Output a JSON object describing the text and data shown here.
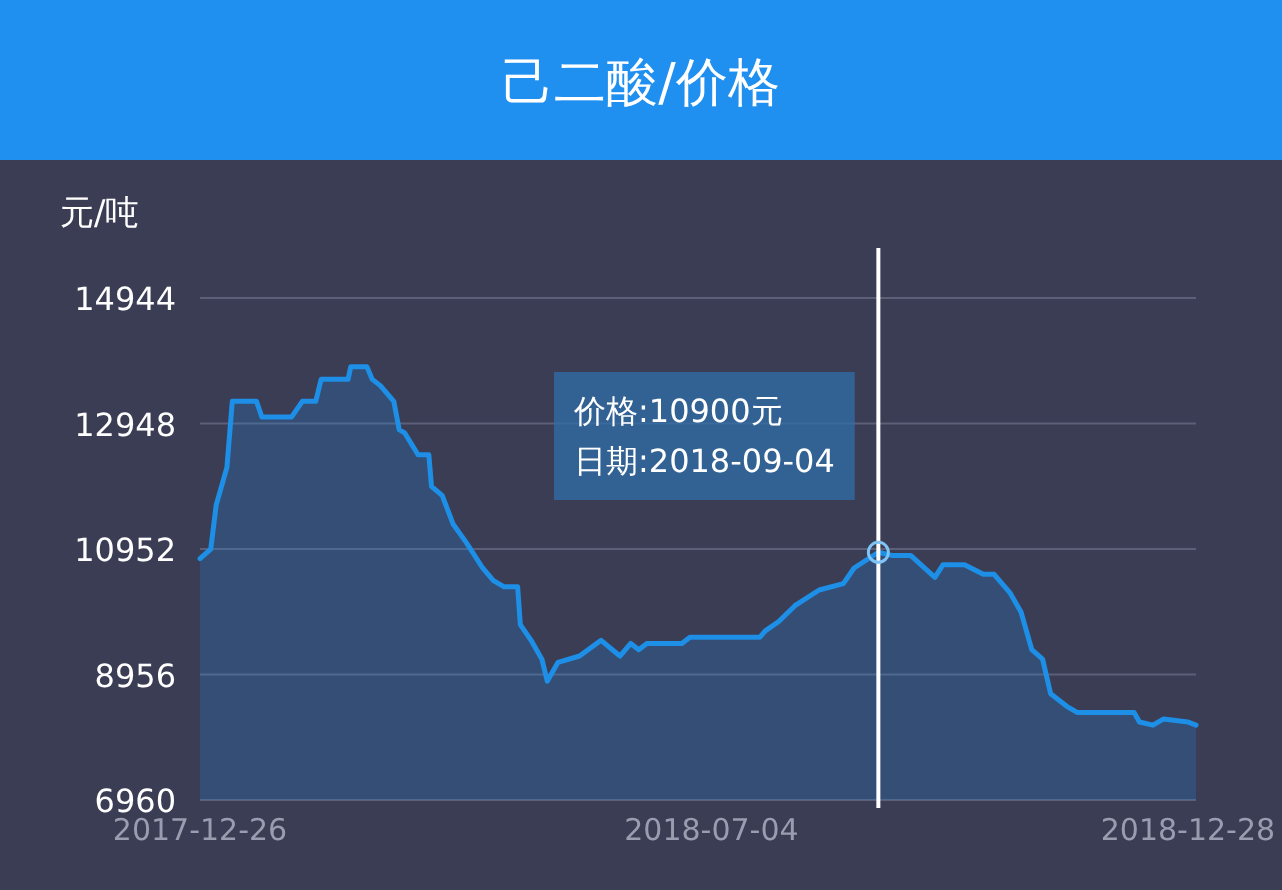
{
  "chart_data": {
    "type": "area",
    "title": "己二酸/价格",
    "ylabel": "元/吨",
    "x": [
      "2017-12-26",
      "2017-12-30",
      "2018-01-01",
      "2018-01-05",
      "2018-01-07",
      "2018-01-16",
      "2018-01-18",
      "2018-01-29",
      "2018-02-02",
      "2018-02-07",
      "2018-02-09",
      "2018-02-19",
      "2018-02-20",
      "2018-02-26",
      "2018-02-28",
      "2018-03-03",
      "2018-03-08",
      "2018-03-10",
      "2018-03-12",
      "2018-03-17",
      "2018-03-21",
      "2018-03-22",
      "2018-03-26",
      "2018-03-30",
      "2018-04-04",
      "2018-04-10",
      "2018-04-14",
      "2018-04-18",
      "2018-04-23",
      "2018-04-24",
      "2018-04-28",
      "2018-05-02",
      "2018-05-04",
      "2018-05-08",
      "2018-05-16",
      "2018-05-24",
      "2018-05-31",
      "2018-06-04",
      "2018-06-07",
      "2018-06-10",
      "2018-06-23",
      "2018-06-26",
      "2018-07-22",
      "2018-07-24",
      "2018-07-29",
      "2018-08-04",
      "2018-08-13",
      "2018-08-22",
      "2018-08-26",
      "2018-09-04",
      "2018-09-09",
      "2018-09-16",
      "2018-09-25",
      "2018-09-28",
      "2018-10-06",
      "2018-10-13",
      "2018-10-17",
      "2018-10-23",
      "2018-10-27",
      "2018-10-31",
      "2018-11-04",
      "2018-11-07",
      "2018-11-13",
      "2018-11-17",
      "2018-12-08",
      "2018-12-10",
      "2018-12-15",
      "2018-12-19",
      "2018-12-28",
      "2018-12-31"
    ],
    "series": [
      {
        "color": "#1e8fe6",
        "values": [
          10800,
          10950,
          11650,
          12250,
          13300,
          13300,
          13050,
          13050,
          13300,
          13300,
          13650,
          13650,
          13850,
          13850,
          13650,
          13550,
          13300,
          12850,
          12800,
          12450,
          12450,
          11950,
          11800,
          11350,
          11050,
          10650,
          10450,
          10350,
          10350,
          9750,
          9500,
          9200,
          8850,
          9150,
          9250,
          9500,
          9250,
          9450,
          9350,
          9450,
          9450,
          9550,
          9550,
          9650,
          9800,
          10050,
          10300,
          10400,
          10650,
          10900,
          10850,
          10850,
          10500,
          10700,
          10700,
          10550,
          10550,
          10250,
          9950,
          9350,
          9200,
          8650,
          8450,
          8350,
          8350,
          8200,
          8150,
          8250,
          8200,
          8150
        ]
      }
    ],
    "xlim": [
      "2017-12-26",
      "2018-12-31"
    ],
    "xticks": [
      {
        "value": "2017-12-26",
        "label": "2017-12-26"
      },
      {
        "value": "2018-07-04",
        "label": "2018-07-04"
      },
      {
        "value": "2018-12-28",
        "label": "2018-12-28"
      }
    ],
    "ylim": [
      6960,
      14944
    ],
    "yticks": [
      6960,
      8956,
      10952,
      12948,
      14944
    ],
    "grid": "y",
    "ref_lines": [
      {
        "axis": "x",
        "value": "2018-09-04",
        "color": "#ffffff"
      }
    ],
    "annotations": [
      "价格:10900元",
      "日期:2018-09-04"
    ]
  }
}
